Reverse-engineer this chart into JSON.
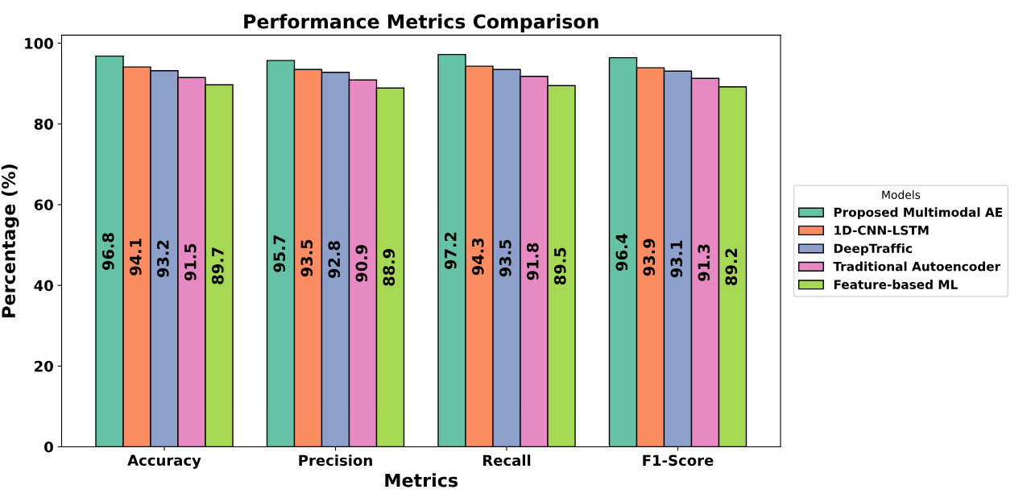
{
  "chart_data": {
    "type": "bar",
    "title": "Performance Metrics Comparison",
    "xlabel": "Metrics",
    "ylabel": "Percentage (%)",
    "categories": [
      "Accuracy",
      "Precision",
      "Recall",
      "F1-Score"
    ],
    "series": [
      {
        "name": "Proposed Multimodal AE",
        "color": "#66c2a5",
        "values": [
          96.8,
          95.7,
          97.2,
          96.4
        ]
      },
      {
        "name": "1D-CNN-LSTM",
        "color": "#fc8d62",
        "values": [
          94.1,
          93.5,
          94.3,
          93.9
        ]
      },
      {
        "name": "DeepTraffic",
        "color": "#8da0cb",
        "values": [
          93.2,
          92.8,
          93.5,
          93.1
        ]
      },
      {
        "name": "Traditional Autoencoder",
        "color": "#e78ac3",
        "values": [
          91.5,
          90.9,
          91.8,
          91.3
        ]
      },
      {
        "name": "Feature-based ML",
        "color": "#a6d854",
        "values": [
          89.7,
          88.9,
          89.5,
          89.2
        ]
      }
    ],
    "legend_title": "Models",
    "legend": "right",
    "data_labels": true,
    "grid": false,
    "ylim": [
      0,
      102
    ],
    "yticks": [
      0,
      20,
      40,
      60,
      80,
      100
    ]
  }
}
